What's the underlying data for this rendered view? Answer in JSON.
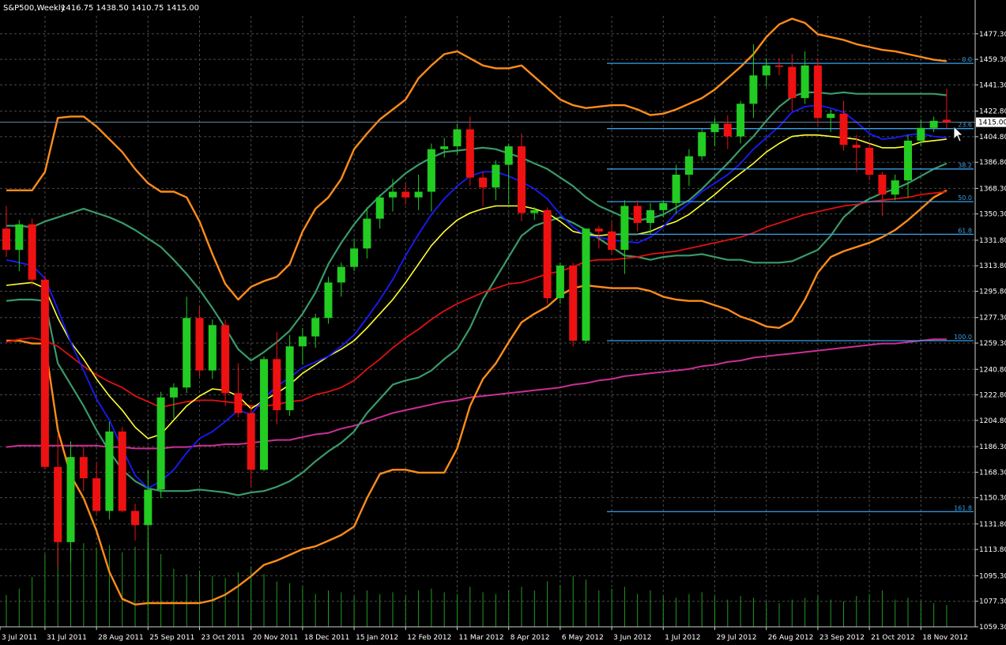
{
  "header": {
    "symbol": "S&P500,Weekly",
    "ohlc": "1416.75 1438.50 1410.75 1415.00"
  },
  "colors": {
    "background": "#000000",
    "grid": "#4a4a4a",
    "axis": "#cfcfcf",
    "bull": "#22cc22",
    "bear": "#ee1111",
    "volume": "#1f9a1f",
    "bb_outer": "#ff8c1a",
    "bb_inner": "#3a9a6a",
    "ma_fast": "#1a1aff",
    "ma_mid": "#ffff33",
    "ma_slow": "#dd1111",
    "ma_long": "#cc2e96",
    "fib": "#3aa0e8",
    "price_box_bg": "#ffffff"
  },
  "chart_data": {
    "type": "candlestick",
    "timeframe": "weekly",
    "ylim": [
      1059.3,
      1490
    ],
    "yticks": [
      "1477.30",
      "1459.30",
      "1441.30",
      "1422.80",
      "1404.80",
      "1386.80",
      "1368.30",
      "1350.30",
      "1331.80",
      "1313.80",
      "1295.80",
      "1277.30",
      "1259.30",
      "1240.80",
      "1222.80",
      "1204.80",
      "1186.30",
      "1168.30",
      "1150.30",
      "1131.80",
      "1113.80",
      "1095.30",
      "1077.30",
      "1059.30"
    ],
    "xticks": [
      {
        "label": "3 Jul 2011",
        "i": -1
      },
      {
        "label": "31 Jul 2011",
        "i": 3
      },
      {
        "label": "28 Aug 2011",
        "i": 7
      },
      {
        "label": "25 Sep 2011",
        "i": 11
      },
      {
        "label": "23 Oct 2011",
        "i": 15
      },
      {
        "label": "20 Nov 2011",
        "i": 19
      },
      {
        "label": "18 Dec 2011",
        "i": 23
      },
      {
        "label": "15 Jan 2012",
        "i": 27
      },
      {
        "label": "12 Feb 2012",
        "i": 31
      },
      {
        "label": "11 Mar 2012",
        "i": 35
      },
      {
        "label": "8 Apr 2012",
        "i": 39
      },
      {
        "label": "6 May 2012",
        "i": 43
      },
      {
        "label": "3 Jun 2012",
        "i": 47
      },
      {
        "label": "1 Jul 2012",
        "i": 51
      },
      {
        "label": "29 Jul 2012",
        "i": 55
      },
      {
        "label": "26 Aug 2012",
        "i": 59
      },
      {
        "label": "23 Sep 2012",
        "i": 63
      },
      {
        "label": "21 Oct 2012",
        "i": 67
      },
      {
        "label": "18 Nov 2012",
        "i": 71
      }
    ],
    "candles": [
      {
        "o": 1340,
        "h": 1356,
        "l": 1320,
        "c": 1325
      },
      {
        "o": 1325,
        "h": 1346,
        "l": 1310,
        "c": 1343
      },
      {
        "o": 1343,
        "h": 1347,
        "l": 1300,
        "c": 1304
      },
      {
        "o": 1304,
        "h": 1307,
        "l": 1170,
        "c": 1172
      },
      {
        "o": 1172,
        "h": 1195,
        "l": 1101,
        "c": 1119
      },
      {
        "o": 1119,
        "h": 1190,
        "l": 1105,
        "c": 1179
      },
      {
        "o": 1179,
        "h": 1187,
        "l": 1155,
        "c": 1164
      },
      {
        "o": 1164,
        "h": 1175,
        "l": 1139,
        "c": 1141
      },
      {
        "o": 1141,
        "h": 1204,
        "l": 1135,
        "c": 1197
      },
      {
        "o": 1197,
        "h": 1200,
        "l": 1140,
        "c": 1141
      },
      {
        "o": 1141,
        "h": 1146,
        "l": 1120,
        "c": 1131
      },
      {
        "o": 1131,
        "h": 1170,
        "l": 1075,
        "c": 1156
      },
      {
        "o": 1156,
        "h": 1225,
        "l": 1150,
        "c": 1221
      },
      {
        "o": 1221,
        "h": 1231,
        "l": 1206,
        "c": 1228
      },
      {
        "o": 1228,
        "h": 1292,
        "l": 1224,
        "c": 1277
      },
      {
        "o": 1277,
        "h": 1285,
        "l": 1236,
        "c": 1240
      },
      {
        "o": 1240,
        "h": 1276,
        "l": 1234,
        "c": 1272
      },
      {
        "o": 1272,
        "h": 1276,
        "l": 1215,
        "c": 1224
      },
      {
        "o": 1224,
        "h": 1245,
        "l": 1207,
        "c": 1210
      },
      {
        "o": 1210,
        "h": 1215,
        "l": 1158,
        "c": 1170
      },
      {
        "o": 1170,
        "h": 1250,
        "l": 1169,
        "c": 1248
      },
      {
        "o": 1248,
        "h": 1267,
        "l": 1202,
        "c": 1212
      },
      {
        "o": 1212,
        "h": 1265,
        "l": 1208,
        "c": 1257
      },
      {
        "o": 1257,
        "h": 1270,
        "l": 1244,
        "c": 1264
      },
      {
        "o": 1264,
        "h": 1280,
        "l": 1256,
        "c": 1277
      },
      {
        "o": 1277,
        "h": 1306,
        "l": 1273,
        "c": 1302
      },
      {
        "o": 1302,
        "h": 1316,
        "l": 1292,
        "c": 1313
      },
      {
        "o": 1313,
        "h": 1333,
        "l": 1310,
        "c": 1326
      },
      {
        "o": 1326,
        "h": 1355,
        "l": 1319,
        "c": 1347
      },
      {
        "o": 1347,
        "h": 1364,
        "l": 1340,
        "c": 1362
      },
      {
        "o": 1362,
        "h": 1375,
        "l": 1352,
        "c": 1366
      },
      {
        "o": 1366,
        "h": 1372,
        "l": 1357,
        "c": 1362
      },
      {
        "o": 1362,
        "h": 1378,
        "l": 1353,
        "c": 1366
      },
      {
        "o": 1366,
        "h": 1400,
        "l": 1352,
        "c": 1396
      },
      {
        "o": 1396,
        "h": 1404,
        "l": 1390,
        "c": 1398
      },
      {
        "o": 1398,
        "h": 1414,
        "l": 1392,
        "c": 1410
      },
      {
        "o": 1410,
        "h": 1419,
        "l": 1370,
        "c": 1376
      },
      {
        "o": 1376,
        "h": 1380,
        "l": 1356,
        "c": 1369
      },
      {
        "o": 1369,
        "h": 1388,
        "l": 1360,
        "c": 1385
      },
      {
        "o": 1385,
        "h": 1400,
        "l": 1357,
        "c": 1398
      },
      {
        "o": 1398,
        "h": 1407,
        "l": 1345,
        "c": 1351
      },
      {
        "o": 1351,
        "h": 1355,
        "l": 1346,
        "c": 1353
      },
      {
        "o": 1353,
        "h": 1355,
        "l": 1287,
        "c": 1291
      },
      {
        "o": 1291,
        "h": 1316,
        "l": 1287,
        "c": 1314
      },
      {
        "o": 1314,
        "h": 1316,
        "l": 1257,
        "c": 1261
      },
      {
        "o": 1261,
        "h": 1340,
        "l": 1259,
        "c": 1340
      },
      {
        "o": 1340,
        "h": 1342,
        "l": 1326,
        "c": 1338
      },
      {
        "o": 1338,
        "h": 1345,
        "l": 1322,
        "c": 1325
      },
      {
        "o": 1325,
        "h": 1360,
        "l": 1308,
        "c": 1356
      },
      {
        "o": 1356,
        "h": 1360,
        "l": 1338,
        "c": 1344
      },
      {
        "o": 1344,
        "h": 1358,
        "l": 1336,
        "c": 1353
      },
      {
        "o": 1353,
        "h": 1360,
        "l": 1348,
        "c": 1358
      },
      {
        "o": 1358,
        "h": 1385,
        "l": 1350,
        "c": 1378
      },
      {
        "o": 1378,
        "h": 1396,
        "l": 1370,
        "c": 1391
      },
      {
        "o": 1391,
        "h": 1410,
        "l": 1388,
        "c": 1408
      },
      {
        "o": 1408,
        "h": 1418,
        "l": 1398,
        "c": 1414
      },
      {
        "o": 1414,
        "h": 1420,
        "l": 1396,
        "c": 1405
      },
      {
        "o": 1405,
        "h": 1430,
        "l": 1400,
        "c": 1428
      },
      {
        "o": 1428,
        "h": 1470,
        "l": 1418,
        "c": 1448
      },
      {
        "o": 1448,
        "h": 1460,
        "l": 1440,
        "c": 1455
      },
      {
        "o": 1455,
        "h": 1460,
        "l": 1448,
        "c": 1454
      },
      {
        "o": 1454,
        "h": 1463,
        "l": 1423,
        "c": 1432
      },
      {
        "o": 1432,
        "h": 1465,
        "l": 1428,
        "c": 1455
      },
      {
        "o": 1455,
        "h": 1460,
        "l": 1413,
        "c": 1418
      },
      {
        "o": 1418,
        "h": 1424,
        "l": 1408,
        "c": 1421
      },
      {
        "o": 1421,
        "h": 1430,
        "l": 1395,
        "c": 1399
      },
      {
        "o": 1399,
        "h": 1406,
        "l": 1380,
        "c": 1397
      },
      {
        "o": 1397,
        "h": 1400,
        "l": 1374,
        "c": 1378
      },
      {
        "o": 1378,
        "h": 1380,
        "l": 1349,
        "c": 1364
      },
      {
        "o": 1364,
        "h": 1378,
        "l": 1360,
        "c": 1374
      },
      {
        "o": 1374,
        "h": 1406,
        "l": 1362,
        "c": 1402
      },
      {
        "o": 1402,
        "h": 1417,
        "l": 1398,
        "c": 1411
      },
      {
        "o": 1411,
        "h": 1419,
        "l": 1408,
        "c": 1416
      },
      {
        "o": 1416.75,
        "h": 1438.5,
        "l": 1410.75,
        "c": 1415
      }
    ],
    "volume": [
      35,
      42,
      55,
      80,
      95,
      100,
      92,
      86,
      90,
      82,
      88,
      94,
      80,
      64,
      58,
      62,
      56,
      54,
      60,
      66,
      58,
      50,
      48,
      44,
      36,
      40,
      38,
      34,
      40,
      36,
      38,
      34,
      40,
      42,
      38,
      36,
      44,
      38,
      36,
      40,
      44,
      40,
      50,
      46,
      56,
      52,
      40,
      42,
      44,
      36,
      40,
      34,
      32,
      36,
      38,
      34,
      30,
      34,
      32,
      28,
      26,
      30,
      32,
      34,
      30,
      28,
      34,
      36,
      40,
      30,
      32,
      28,
      26,
      24
    ],
    "bollinger_outer_upper": [
      1367,
      1367,
      1367,
      1380,
      1418,
      1419,
      1419,
      1412,
      1403,
      1394,
      1382,
      1372,
      1366,
      1366,
      1362,
      1345,
      1322,
      1301,
      1290,
      1299,
      1303,
      1306,
      1315,
      1338,
      1354,
      1362,
      1375,
      1396,
      1407,
      1417,
      1424,
      1431,
      1446,
      1455,
      1463,
      1465,
      1460,
      1455,
      1453,
      1453,
      1455,
      1447,
      1439,
      1431,
      1427,
      1425,
      1426,
      1427,
      1427,
      1424,
      1420,
      1421,
      1424,
      1428,
      1432,
      1438,
      1446,
      1454,
      1463,
      1475,
      1484,
      1488,
      1485,
      1477,
      1475,
      1473,
      1470,
      1468,
      1466,
      1465,
      1463,
      1461,
      1459,
      1458
    ],
    "bollinger_outer_lower": [
      1261,
      1261,
      1259,
      1259,
      1198,
      1166,
      1150,
      1127,
      1098,
      1079,
      1075,
      1076,
      1076,
      1076,
      1076,
      1076,
      1078,
      1082,
      1088,
      1095,
      1103,
      1106,
      1110,
      1114,
      1116,
      1120,
      1124,
      1130,
      1150,
      1167,
      1170,
      1170,
      1168,
      1168,
      1168,
      1185,
      1215,
      1234,
      1245,
      1260,
      1274,
      1280,
      1285,
      1293,
      1298,
      1300,
      1299,
      1298,
      1298,
      1298,
      1296,
      1292,
      1290,
      1289,
      1289,
      1286,
      1283,
      1278,
      1275,
      1271,
      1270,
      1275,
      1290,
      1309,
      1320,
      1324,
      1327,
      1330,
      1334,
      1339,
      1346,
      1354,
      1362,
      1367
    ],
    "bollinger_inner_upper": [
      1342,
      1342,
      1341,
      1345,
      1348,
      1351,
      1354,
      1351,
      1348,
      1344,
      1339,
      1333,
      1327,
      1318,
      1308,
      1297,
      1284,
      1270,
      1255,
      1247,
      1253,
      1260,
      1268,
      1280,
      1295,
      1315,
      1330,
      1343,
      1354,
      1363,
      1371,
      1379,
      1385,
      1390,
      1394,
      1395,
      1396,
      1397,
      1396,
      1393,
      1390,
      1386,
      1382,
      1376,
      1370,
      1362,
      1356,
      1352,
      1348,
      1346,
      1347,
      1350,
      1355,
      1360,
      1368,
      1377,
      1386,
      1396,
      1405,
      1416,
      1426,
      1433,
      1436,
      1436,
      1435,
      1436,
      1435,
      1435,
      1435,
      1435,
      1435,
      1435,
      1435,
      1434
    ],
    "bollinger_inner_lower": [
      1289,
      1290,
      1290,
      1289,
      1245,
      1230,
      1215,
      1198,
      1183,
      1170,
      1162,
      1157,
      1155,
      1155,
      1155,
      1156,
      1155,
      1154,
      1152,
      1154,
      1155,
      1158,
      1162,
      1168,
      1176,
      1183,
      1189,
      1197,
      1210,
      1220,
      1230,
      1233,
      1235,
      1240,
      1248,
      1255,
      1270,
      1290,
      1305,
      1320,
      1335,
      1342,
      1345,
      1348,
      1344,
      1339,
      1333,
      1327,
      1321,
      1320,
      1318,
      1320,
      1321,
      1321,
      1322,
      1320,
      1318,
      1318,
      1316,
      1316,
      1316,
      1317,
      1321,
      1325,
      1335,
      1348,
      1356,
      1361,
      1365,
      1368,
      1372,
      1377,
      1382,
      1386
    ],
    "ma_fast": [
      1318,
      1316,
      1314,
      1305,
      1283,
      1260,
      1240,
      1220,
      1205,
      1185,
      1166,
      1157,
      1162,
      1170,
      1182,
      1192,
      1197,
      1204,
      1212,
      1209,
      1220,
      1229,
      1235,
      1242,
      1246,
      1250,
      1257,
      1265,
      1277,
      1290,
      1304,
      1321,
      1336,
      1350,
      1361,
      1370,
      1377,
      1380,
      1380,
      1377,
      1373,
      1368,
      1361,
      1350,
      1341,
      1335,
      1334,
      1332,
      1331,
      1330,
      1334,
      1341,
      1351,
      1358,
      1366,
      1372,
      1378,
      1386,
      1396,
      1404,
      1412,
      1422,
      1426,
      1427,
      1425,
      1422,
      1415,
      1407,
      1403,
      1404,
      1406,
      1407,
      1405,
      1404
    ],
    "ma_mid": [
      1300,
      1301,
      1302,
      1298,
      1277,
      1260,
      1248,
      1234,
      1222,
      1212,
      1200,
      1192,
      1195,
      1205,
      1215,
      1222,
      1227,
      1226,
      1222,
      1213,
      1219,
      1224,
      1230,
      1238,
      1244,
      1250,
      1255,
      1261,
      1270,
      1280,
      1290,
      1302,
      1315,
      1328,
      1338,
      1346,
      1351,
      1354,
      1356,
      1356,
      1356,
      1354,
      1351,
      1345,
      1338,
      1336,
      1335,
      1336,
      1336,
      1336,
      1338,
      1342,
      1345,
      1350,
      1357,
      1364,
      1372,
      1379,
      1386,
      1394,
      1400,
      1405,
      1406,
      1406,
      1405,
      1404,
      1403,
      1400,
      1397,
      1397,
      1398,
      1401,
      1402,
      1403
    ],
    "ma_slow": [
      1260,
      1262,
      1263,
      1261,
      1257,
      1250,
      1243,
      1237,
      1232,
      1228,
      1222,
      1218,
      1214,
      1216,
      1218,
      1219,
      1219,
      1218,
      1217,
      1215,
      1215,
      1216,
      1218,
      1219,
      1223,
      1225,
      1228,
      1233,
      1241,
      1248,
      1256,
      1263,
      1269,
      1276,
      1282,
      1287,
      1291,
      1295,
      1298,
      1301,
      1302,
      1305,
      1308,
      1310,
      1313,
      1317,
      1318,
      1318,
      1319,
      1320,
      1322,
      1323,
      1324,
      1326,
      1328,
      1330,
      1332,
      1334,
      1337,
      1341,
      1344,
      1347,
      1350,
      1352,
      1354,
      1356,
      1357,
      1359,
      1360,
      1361,
      1362,
      1364,
      1365,
      1366
    ],
    "ma_long": [
      1186,
      1187,
      1187,
      1187,
      1187,
      1187,
      1187,
      1187,
      1186,
      1186,
      1185,
      1185,
      1185,
      1186,
      1186,
      1187,
      1187,
      1188,
      1188,
      1189,
      1190,
      1191,
      1191,
      1193,
      1195,
      1196,
      1199,
      1201,
      1204,
      1207,
      1210,
      1212,
      1214,
      1216,
      1218,
      1219,
      1221,
      1222,
      1223,
      1224,
      1225,
      1226,
      1227,
      1228,
      1230,
      1231,
      1233,
      1234,
      1236,
      1237,
      1238,
      1239,
      1240,
      1241,
      1243,
      1244,
      1246,
      1247,
      1249,
      1250,
      1251,
      1252,
      1253,
      1254,
      1255,
      1256,
      1257,
      1258,
      1259,
      1259,
      1260,
      1261,
      1262,
      1262
    ],
    "fibonacci": {
      "levels": [
        {
          "label": "0.0",
          "value": 1456.5
        },
        {
          "label": "23.6",
          "value": 1410.5
        },
        {
          "label": "38.2",
          "value": 1382.0
        },
        {
          "label": "50.0",
          "value": 1359.0
        },
        {
          "label": "61.8",
          "value": 1336.0
        },
        {
          "label": "100.0",
          "value": 1261.0
        },
        {
          "label": "161.8",
          "value": 1140.5
        }
      ]
    },
    "current_price": "1415.00"
  }
}
